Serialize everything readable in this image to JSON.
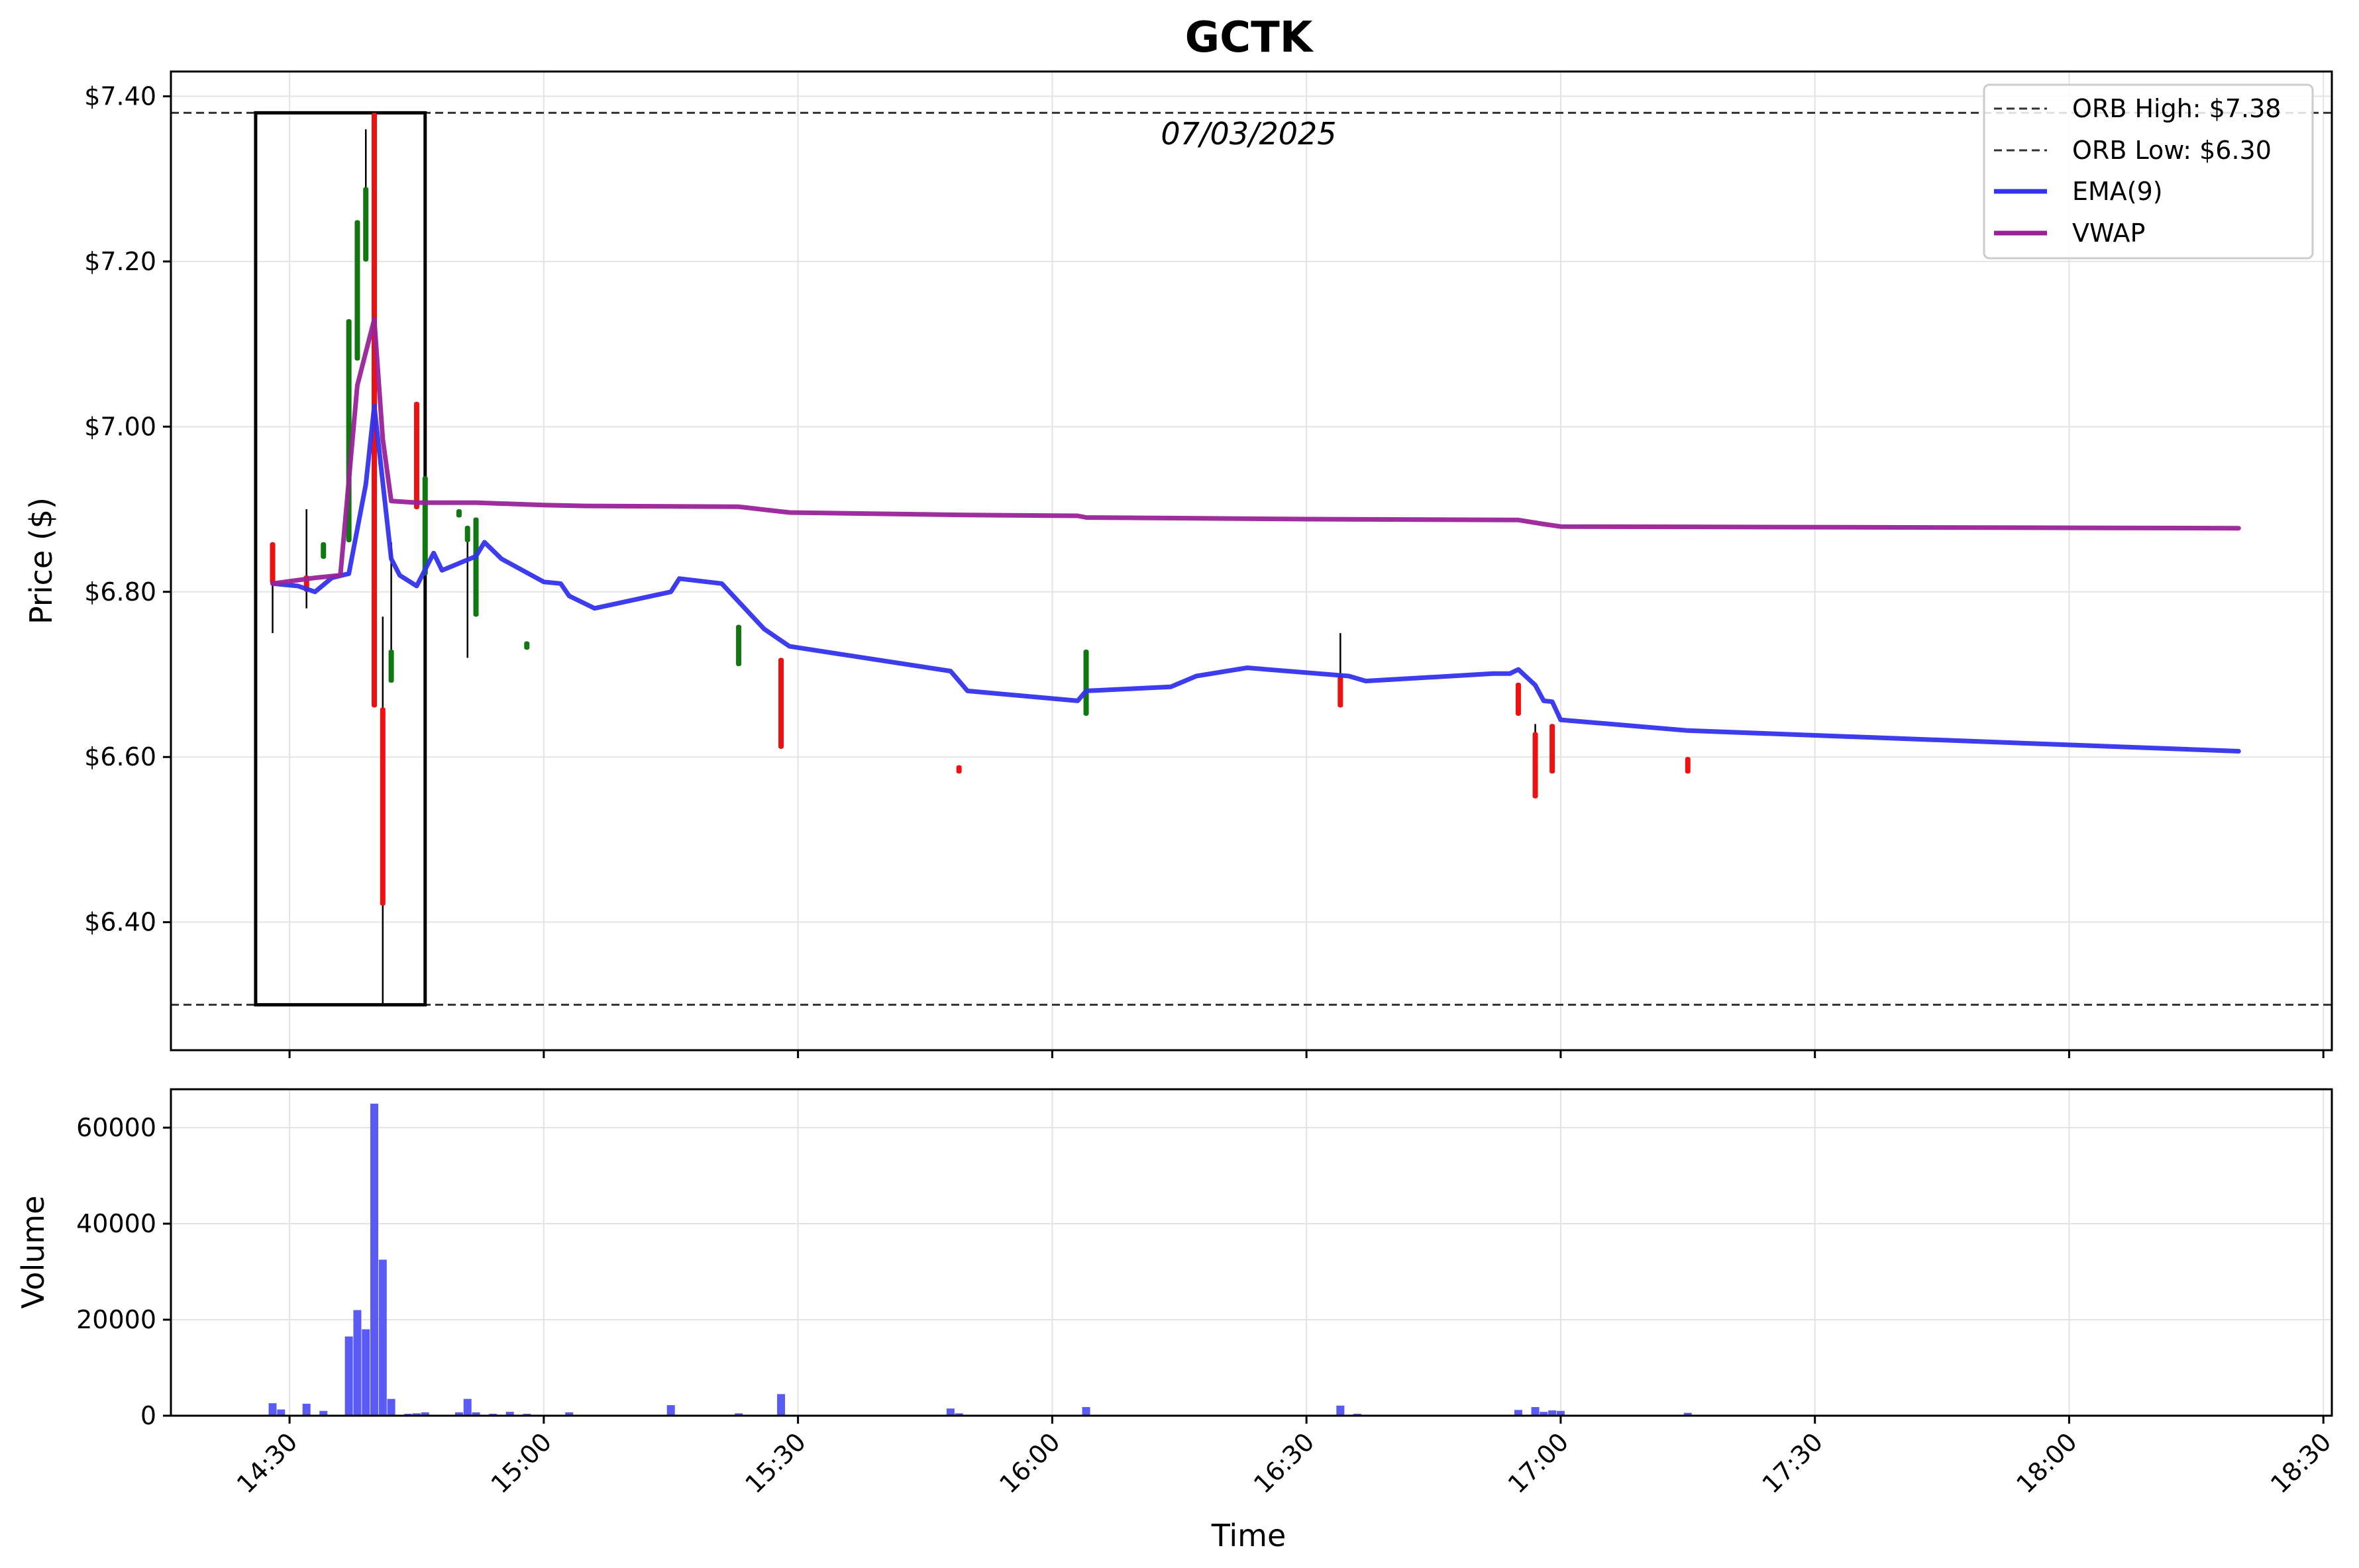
{
  "chart_data": [
    {
      "type": "candlestick",
      "title": "GCTK",
      "annotation": "07/03/2025",
      "ylabel": "Price ($)",
      "ylim": [
        6.245,
        7.43
      ],
      "yticks": [
        6.4,
        6.6,
        6.8,
        7.0,
        7.2,
        7.4
      ],
      "ytick_labels": [
        "$6.40",
        "$6.60",
        "$6.80",
        "$7.00",
        "$7.20",
        "$7.40"
      ],
      "grid": true,
      "legend_position": "top-right",
      "orb": {
        "high": 7.38,
        "low": 6.3,
        "start": "14:26",
        "end": "14:46"
      },
      "legend": [
        {
          "label": "ORB High: $7.38",
          "style": "dashed",
          "color": "#333333"
        },
        {
          "label": "ORB Low: $6.30",
          "style": "dashed",
          "color": "#333333"
        },
        {
          "label": "EMA(9)",
          "style": "solid",
          "color": "#3333ee"
        },
        {
          "label": "VWAP",
          "style": "solid",
          "color": "#992299"
        }
      ],
      "candles": [
        {
          "t": "14:28",
          "o": 6.86,
          "h": 6.86,
          "l": 6.75,
          "c": 6.81
        },
        {
          "t": "14:32",
          "o": 6.82,
          "h": 6.9,
          "l": 6.78,
          "c": 6.8
        },
        {
          "t": "14:34",
          "o": 6.84,
          "h": 6.86,
          "l": 6.84,
          "c": 6.86
        },
        {
          "t": "14:37",
          "o": 6.86,
          "h": 7.13,
          "l": 6.86,
          "c": 7.13
        },
        {
          "t": "14:38",
          "o": 7.08,
          "h": 7.25,
          "l": 7.08,
          "c": 7.25
        },
        {
          "t": "14:39",
          "o": 7.2,
          "h": 7.36,
          "l": 7.2,
          "c": 7.29
        },
        {
          "t": "14:40",
          "o": 7.38,
          "h": 7.38,
          "l": 6.66,
          "c": 6.66
        },
        {
          "t": "14:41",
          "o": 6.66,
          "h": 6.77,
          "l": 6.3,
          "c": 6.42
        },
        {
          "t": "14:42",
          "o": 6.69,
          "h": 6.86,
          "l": 6.69,
          "c": 6.73
        },
        {
          "t": "14:45",
          "o": 7.03,
          "h": 7.03,
          "l": 6.9,
          "c": 6.9
        },
        {
          "t": "14:46",
          "o": 6.82,
          "h": 6.94,
          "l": 6.82,
          "c": 6.94
        },
        {
          "t": "14:50",
          "o": 6.89,
          "h": 6.9,
          "l": 6.89,
          "c": 6.9
        },
        {
          "t": "14:51",
          "o": 6.86,
          "h": 6.88,
          "l": 6.72,
          "c": 6.88
        },
        {
          "t": "14:52",
          "o": 6.77,
          "h": 6.89,
          "l": 6.77,
          "c": 6.89
        },
        {
          "t": "14:58",
          "o": 6.73,
          "h": 6.74,
          "l": 6.73,
          "c": 6.74
        },
        {
          "t": "15:23",
          "o": 6.71,
          "h": 6.76,
          "l": 6.71,
          "c": 6.76
        },
        {
          "t": "15:28",
          "o": 6.72,
          "h": 6.72,
          "l": 6.61,
          "c": 6.61
        },
        {
          "t": "15:49",
          "o": 6.59,
          "h": 6.59,
          "l": 6.58,
          "c": 6.58
        },
        {
          "t": "16:04",
          "o": 6.65,
          "h": 6.73,
          "l": 6.65,
          "c": 6.73
        },
        {
          "t": "16:34",
          "o": 6.7,
          "h": 6.75,
          "l": 6.66,
          "c": 6.66
        },
        {
          "t": "16:55",
          "o": 6.69,
          "h": 6.69,
          "l": 6.65,
          "c": 6.65
        },
        {
          "t": "16:57",
          "o": 6.63,
          "h": 6.64,
          "l": 6.55,
          "c": 6.55
        },
        {
          "t": "16:59",
          "o": 6.64,
          "h": 6.64,
          "l": 6.58,
          "c": 6.58
        },
        {
          "t": "17:15",
          "o": 6.6,
          "h": 6.6,
          "l": 6.58,
          "c": 6.58
        }
      ],
      "series": [
        {
          "name": "EMA(9)",
          "color": "#3333ee",
          "points": [
            [
              "14:28",
              6.81
            ],
            [
              "14:31",
              6.807
            ],
            [
              "14:33",
              6.8
            ],
            [
              "14:35",
              6.817
            ],
            [
              "14:37",
              6.822
            ],
            [
              "14:39",
              6.93
            ],
            [
              "14:40",
              7.025
            ],
            [
              "14:42",
              6.84
            ],
            [
              "14:43",
              6.82
            ],
            [
              "14:45",
              6.807
            ],
            [
              "14:47",
              6.847
            ],
            [
              "14:48",
              6.826
            ],
            [
              "14:52",
              6.843
            ],
            [
              "14:53",
              6.86
            ],
            [
              "14:55",
              6.84
            ],
            [
              "15:00",
              6.812
            ],
            [
              "15:02",
              6.81
            ],
            [
              "15:03",
              6.795
            ],
            [
              "15:06",
              6.78
            ],
            [
              "15:15",
              6.8
            ],
            [
              "15:16",
              6.816
            ],
            [
              "15:21",
              6.81
            ],
            [
              "15:26",
              6.755
            ],
            [
              "15:29",
              6.734
            ],
            [
              "15:48",
              6.704
            ],
            [
              "15:50",
              6.68
            ],
            [
              "16:03",
              6.668
            ],
            [
              "16:04",
              6.68
            ],
            [
              "16:14",
              6.685
            ],
            [
              "16:17",
              6.698
            ],
            [
              "16:23",
              6.708
            ],
            [
              "16:35",
              6.698
            ],
            [
              "16:37",
              6.692
            ],
            [
              "16:52",
              6.701
            ],
            [
              "16:54",
              6.701
            ],
            [
              "16:55",
              6.706
            ],
            [
              "16:57",
              6.687
            ],
            [
              "16:58",
              6.668
            ],
            [
              "16:59",
              6.667
            ],
            [
              "17:00",
              6.645
            ],
            [
              "17:15",
              6.632
            ],
            [
              "18:20",
              6.607
            ]
          ]
        },
        {
          "name": "VWAP",
          "color": "#992299",
          "points": [
            [
              "14:28",
              6.81
            ],
            [
              "14:33",
              6.817
            ],
            [
              "14:36",
              6.82
            ],
            [
              "14:38",
              7.05
            ],
            [
              "14:40",
              7.13
            ],
            [
              "14:41",
              6.985
            ],
            [
              "14:42",
              6.91
            ],
            [
              "14:45",
              6.908
            ],
            [
              "14:52",
              6.908
            ],
            [
              "15:00",
              6.905
            ],
            [
              "15:05",
              6.904
            ],
            [
              "15:23",
              6.903
            ],
            [
              "15:29",
              6.896
            ],
            [
              "15:50",
              6.893
            ],
            [
              "16:03",
              6.892
            ],
            [
              "16:04",
              6.89
            ],
            [
              "16:30",
              6.888
            ],
            [
              "16:55",
              6.887
            ],
            [
              "16:58",
              6.882
            ],
            [
              "17:00",
              6.879
            ],
            [
              "18:20",
              6.877
            ]
          ]
        }
      ]
    },
    {
      "type": "bar",
      "ylabel": "Volume",
      "xlabel": "Time",
      "ylim": [
        0,
        68000
      ],
      "yticks": [
        0,
        20000,
        40000,
        60000
      ],
      "ytick_labels": [
        "0",
        "20000",
        "40000",
        "60000"
      ],
      "xlim": [
        "14:16",
        "18:31"
      ],
      "xticks": [
        "14:30",
        "15:00",
        "15:30",
        "16:00",
        "16:30",
        "17:00",
        "17:30",
        "18:00",
        "18:30"
      ],
      "bar_color": "#5a5af5",
      "bars": [
        {
          "t": "14:28",
          "v": 2600
        },
        {
          "t": "14:29",
          "v": 1300
        },
        {
          "t": "14:32",
          "v": 2500
        },
        {
          "t": "14:34",
          "v": 1000
        },
        {
          "t": "14:37",
          "v": 16500
        },
        {
          "t": "14:38",
          "v": 22000
        },
        {
          "t": "14:39",
          "v": 18000
        },
        {
          "t": "14:40",
          "v": 65000
        },
        {
          "t": "14:41",
          "v": 32500
        },
        {
          "t": "14:42",
          "v": 3500
        },
        {
          "t": "14:44",
          "v": 400
        },
        {
          "t": "14:45",
          "v": 500
        },
        {
          "t": "14:46",
          "v": 700
        },
        {
          "t": "14:50",
          "v": 700
        },
        {
          "t": "14:51",
          "v": 3500
        },
        {
          "t": "14:52",
          "v": 700
        },
        {
          "t": "14:54",
          "v": 400
        },
        {
          "t": "14:56",
          "v": 800
        },
        {
          "t": "14:58",
          "v": 400
        },
        {
          "t": "15:03",
          "v": 700
        },
        {
          "t": "15:15",
          "v": 2200
        },
        {
          "t": "15:23",
          "v": 500
        },
        {
          "t": "15:28",
          "v": 4500
        },
        {
          "t": "15:48",
          "v": 1500
        },
        {
          "t": "15:49",
          "v": 500
        },
        {
          "t": "16:04",
          "v": 1800
        },
        {
          "t": "16:34",
          "v": 2100
        },
        {
          "t": "16:36",
          "v": 400
        },
        {
          "t": "16:55",
          "v": 1200
        },
        {
          "t": "16:57",
          "v": 1800
        },
        {
          "t": "16:58",
          "v": 800
        },
        {
          "t": "16:59",
          "v": 1100
        },
        {
          "t": "17:00",
          "v": 1000
        },
        {
          "t": "17:15",
          "v": 600
        },
        {
          "t": "18:20",
          "v": 150
        }
      ]
    }
  ]
}
